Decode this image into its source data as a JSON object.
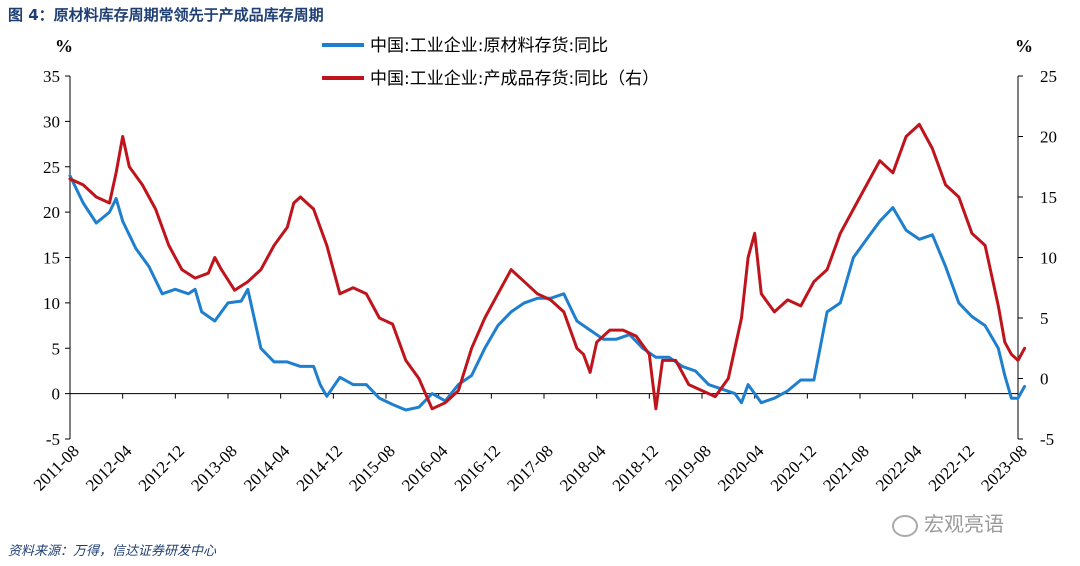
{
  "figure": {
    "title": "图 4：原材料库存周期常领先于产成品库存周期",
    "source": "资料来源：万得，信达证券研发中心",
    "watermark": "宏观亮语",
    "left_unit": "%",
    "right_unit": "%"
  },
  "chart_data": {
    "type": "line",
    "x_tick_labels": [
      "2011-08",
      "2012-04",
      "2012-12",
      "2013-08",
      "2014-04",
      "2014-12",
      "2015-08",
      "2016-04",
      "2016-12",
      "2017-08",
      "2018-04",
      "2018-12",
      "2019-08",
      "2020-04",
      "2020-12",
      "2021-08",
      "2022-04",
      "2022-12",
      "2023-08"
    ],
    "x_range": [
      "2011-08",
      "2023-08"
    ],
    "left_axis": {
      "min": -5,
      "max": 35,
      "ticks": [
        -5,
        0,
        5,
        10,
        15,
        20,
        25,
        30,
        35
      ]
    },
    "right_axis": {
      "min": -5,
      "max": 25,
      "ticks": [
        -5,
        0,
        5,
        10,
        15,
        20,
        25
      ]
    },
    "legend_position": "top-center",
    "grid": false,
    "series": [
      {
        "name": "中国:工业企业:原材料存货:同比",
        "axis": "left",
        "color": "#1f7fcf",
        "points": [
          [
            "2011-08",
            24
          ],
          [
            "2011-10",
            21
          ],
          [
            "2011-12",
            18.8
          ],
          [
            "2012-02",
            20
          ],
          [
            "2012-03",
            21.5
          ],
          [
            "2012-04",
            19
          ],
          [
            "2012-06",
            16
          ],
          [
            "2012-08",
            14
          ],
          [
            "2012-10",
            11
          ],
          [
            "2012-12",
            11.5
          ],
          [
            "2013-02",
            11
          ],
          [
            "2013-03",
            11.5
          ],
          [
            "2013-04",
            9
          ],
          [
            "2013-06",
            8
          ],
          [
            "2013-08",
            10
          ],
          [
            "2013-10",
            10.2
          ],
          [
            "2013-11",
            11.5
          ],
          [
            "2014-01",
            5
          ],
          [
            "2014-03",
            3.5
          ],
          [
            "2014-05",
            3.5
          ],
          [
            "2014-07",
            3
          ],
          [
            "2014-09",
            3
          ],
          [
            "2014-10",
            1
          ],
          [
            "2014-11",
            -0.3
          ],
          [
            "2015-01",
            1.8
          ],
          [
            "2015-03",
            1
          ],
          [
            "2015-05",
            1
          ],
          [
            "2015-07",
            -0.5
          ],
          [
            "2015-09",
            -1.2
          ],
          [
            "2015-11",
            -1.8
          ],
          [
            "2016-01",
            -1.5
          ],
          [
            "2016-03",
            0
          ],
          [
            "2016-05",
            -0.8
          ],
          [
            "2016-07",
            1
          ],
          [
            "2016-09",
            2
          ],
          [
            "2016-11",
            5
          ],
          [
            "2017-01",
            7.5
          ],
          [
            "2017-03",
            9
          ],
          [
            "2017-05",
            10
          ],
          [
            "2017-07",
            10.5
          ],
          [
            "2017-09",
            10.5
          ],
          [
            "2017-11",
            11
          ],
          [
            "2018-01",
            8
          ],
          [
            "2018-03",
            7
          ],
          [
            "2018-05",
            6
          ],
          [
            "2018-07",
            6
          ],
          [
            "2018-09",
            6.5
          ],
          [
            "2018-11",
            5
          ],
          [
            "2019-01",
            4
          ],
          [
            "2019-03",
            4
          ],
          [
            "2019-05",
            3
          ],
          [
            "2019-07",
            2.5
          ],
          [
            "2019-09",
            1
          ],
          [
            "2019-11",
            0.5
          ],
          [
            "2020-01",
            0
          ],
          [
            "2020-02",
            -1
          ],
          [
            "2020-03",
            1
          ],
          [
            "2020-05",
            -1
          ],
          [
            "2020-07",
            -0.5
          ],
          [
            "2020-09",
            0.3
          ],
          [
            "2020-11",
            1.5
          ],
          [
            "2021-01",
            1.5
          ],
          [
            "2021-03",
            9
          ],
          [
            "2021-05",
            10
          ],
          [
            "2021-07",
            15
          ],
          [
            "2021-09",
            17
          ],
          [
            "2021-11",
            19
          ],
          [
            "2022-01",
            20.5
          ],
          [
            "2022-03",
            18
          ],
          [
            "2022-05",
            17
          ],
          [
            "2022-07",
            17.5
          ],
          [
            "2022-09",
            14
          ],
          [
            "2022-11",
            10
          ],
          [
            "2023-01",
            8.5
          ],
          [
            "2023-03",
            7.5
          ],
          [
            "2023-05",
            5
          ],
          [
            "2023-06",
            2
          ],
          [
            "2023-07",
            -0.5
          ],
          [
            "2023-08",
            -0.5
          ],
          [
            "2023-09",
            0.8
          ]
        ]
      },
      {
        "name": "中国:工业企业:产成品存货:同比（右）",
        "axis": "right",
        "color": "#c0141c",
        "points": [
          [
            "2011-08",
            16.5
          ],
          [
            "2011-10",
            16
          ],
          [
            "2011-12",
            15
          ],
          [
            "2012-02",
            14.5
          ],
          [
            "2012-03",
            17
          ],
          [
            "2012-04",
            20
          ],
          [
            "2012-05",
            17.5
          ],
          [
            "2012-07",
            16
          ],
          [
            "2012-09",
            14
          ],
          [
            "2012-11",
            11
          ],
          [
            "2013-01",
            9
          ],
          [
            "2013-03",
            8.3
          ],
          [
            "2013-05",
            8.7
          ],
          [
            "2013-06",
            10
          ],
          [
            "2013-07",
            9
          ],
          [
            "2013-09",
            7.3
          ],
          [
            "2013-11",
            8
          ],
          [
            "2014-01",
            9
          ],
          [
            "2014-03",
            11
          ],
          [
            "2014-05",
            12.5
          ],
          [
            "2014-06",
            14.5
          ],
          [
            "2014-07",
            15
          ],
          [
            "2014-09",
            14
          ],
          [
            "2014-11",
            11
          ],
          [
            "2015-01",
            7
          ],
          [
            "2015-03",
            7.5
          ],
          [
            "2015-05",
            7
          ],
          [
            "2015-07",
            5
          ],
          [
            "2015-09",
            4.5
          ],
          [
            "2015-11",
            1.5
          ],
          [
            "2016-01",
            0
          ],
          [
            "2016-03",
            -2.5
          ],
          [
            "2016-05",
            -2
          ],
          [
            "2016-07",
            -1
          ],
          [
            "2016-09",
            2.5
          ],
          [
            "2016-11",
            5
          ],
          [
            "2017-01",
            7
          ],
          [
            "2017-03",
            9
          ],
          [
            "2017-05",
            8
          ],
          [
            "2017-07",
            7
          ],
          [
            "2017-09",
            6.5
          ],
          [
            "2017-11",
            5.5
          ],
          [
            "2018-01",
            2.5
          ],
          [
            "2018-02",
            2
          ],
          [
            "2018-03",
            0.5
          ],
          [
            "2018-04",
            3
          ],
          [
            "2018-06",
            4
          ],
          [
            "2018-08",
            4
          ],
          [
            "2018-10",
            3.5
          ],
          [
            "2018-12",
            2
          ],
          [
            "2019-01",
            -2.5
          ],
          [
            "2019-02",
            1.5
          ],
          [
            "2019-04",
            1.5
          ],
          [
            "2019-06",
            -0.5
          ],
          [
            "2019-08",
            -1
          ],
          [
            "2019-10",
            -1.5
          ],
          [
            "2019-12",
            0
          ],
          [
            "2020-02",
            5
          ],
          [
            "2020-03",
            10
          ],
          [
            "2020-04",
            12
          ],
          [
            "2020-05",
            7
          ],
          [
            "2020-07",
            5.5
          ],
          [
            "2020-09",
            6.5
          ],
          [
            "2020-11",
            6
          ],
          [
            "2021-01",
            8
          ],
          [
            "2021-03",
            9
          ],
          [
            "2021-05",
            12
          ],
          [
            "2021-07",
            14
          ],
          [
            "2021-09",
            16
          ],
          [
            "2021-11",
            18
          ],
          [
            "2022-01",
            17
          ],
          [
            "2022-03",
            20
          ],
          [
            "2022-05",
            21
          ],
          [
            "2022-07",
            19
          ],
          [
            "2022-09",
            16
          ],
          [
            "2022-11",
            15
          ],
          [
            "2023-01",
            12
          ],
          [
            "2023-03",
            11
          ],
          [
            "2023-05",
            6
          ],
          [
            "2023-06",
            3
          ],
          [
            "2023-07",
            2
          ],
          [
            "2023-08",
            1.5
          ],
          [
            "2023-09",
            2.5
          ]
        ]
      }
    ]
  }
}
